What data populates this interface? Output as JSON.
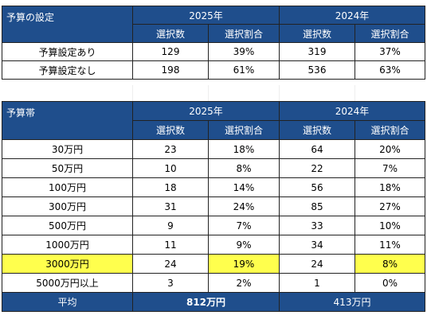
{
  "table1": {
    "corner": "予算の設定",
    "years": [
      "2025年",
      "2024年"
    ],
    "subheaders": [
      "選択数",
      "選択割合",
      "選択数",
      "選択割合"
    ],
    "rows": [
      {
        "label": "予算設定あり",
        "cells": [
          "129",
          "39%",
          "319",
          "37%"
        ]
      },
      {
        "label": "予算設定なし",
        "cells": [
          "198",
          "61%",
          "536",
          "63%"
        ]
      }
    ]
  },
  "table2": {
    "corner": "予算帯",
    "years": [
      "2025年",
      "2024年"
    ],
    "subheaders": [
      "選択数",
      "選択割合",
      "選択数",
      "選択割合"
    ],
    "rows": [
      {
        "label": "30万円",
        "cells": [
          "23",
          "18%",
          "64",
          "20%"
        ]
      },
      {
        "label": "50万円",
        "cells": [
          "10",
          "8%",
          "22",
          "7%"
        ]
      },
      {
        "label": "100万円",
        "cells": [
          "18",
          "14%",
          "56",
          "18%"
        ]
      },
      {
        "label": "300万円",
        "cells": [
          "31",
          "24%",
          "85",
          "27%"
        ]
      },
      {
        "label": "500万円",
        "cells": [
          "9",
          "7%",
          "33",
          "10%"
        ]
      },
      {
        "label": "1000万円",
        "cells": [
          "11",
          "9%",
          "34",
          "11%"
        ]
      },
      {
        "label": "3000万円",
        "cells": [
          "24",
          "19%",
          "24",
          "8%"
        ]
      },
      {
        "label": "5000万円以上",
        "cells": [
          "3",
          "2%",
          "1",
          "0%"
        ]
      }
    ],
    "average": {
      "label": "平均",
      "value_2025": "812万円",
      "value_2024": "413万円"
    }
  },
  "colors": {
    "header_bg": "#1f4e8c",
    "header_text": "#ffffff",
    "highlight": "#ffff4d"
  }
}
